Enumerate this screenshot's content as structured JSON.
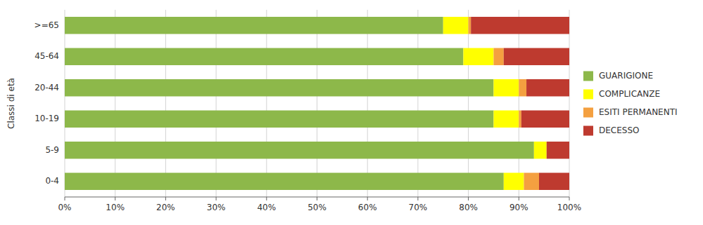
{
  "chart_data": {
    "type": "bar",
    "orientation": "horizontal",
    "stacked": true,
    "y_label": "Classi di età",
    "categories": [
      ">=65",
      "45-64",
      "20-44",
      "10-19",
      "5-9",
      "0-4"
    ],
    "series": [
      {
        "name": "GUARIGIONE",
        "color": "#8DB84A",
        "values": [
          75.0,
          79.0,
          85.0,
          85.0,
          93.0,
          87.0
        ]
      },
      {
        "name": "COMPLICANZE",
        "color": "#FFFF00",
        "values": [
          5.0,
          6.0,
          5.0,
          5.0,
          2.5,
          4.0
        ]
      },
      {
        "name": "ESITI PERMANENTI",
        "color": "#F4A040",
        "values": [
          0.5,
          2.0,
          1.5,
          0.5,
          0.0,
          3.0
        ]
      },
      {
        "name": "DECESSO",
        "color": "#BE3A2F",
        "values": [
          19.5,
          13.0,
          8.5,
          9.5,
          4.5,
          6.0
        ]
      }
    ],
    "xlim": [
      0,
      100
    ],
    "xticks": [
      {
        "value": 0,
        "label": "0%"
      },
      {
        "value": 10,
        "label": "10%"
      },
      {
        "value": 20,
        "label": "20%"
      },
      {
        "value": 30,
        "label": "30%"
      },
      {
        "value": 40,
        "label": "40%"
      },
      {
        "value": 50,
        "label": "50%"
      },
      {
        "value": 60,
        "label": "60%"
      },
      {
        "value": 70,
        "label": "70%"
      },
      {
        "value": 80,
        "label": "80%"
      },
      {
        "value": 90,
        "label": "90%"
      },
      {
        "value": 100,
        "label": "100%"
      }
    ],
    "grid": true,
    "legend": "right"
  }
}
